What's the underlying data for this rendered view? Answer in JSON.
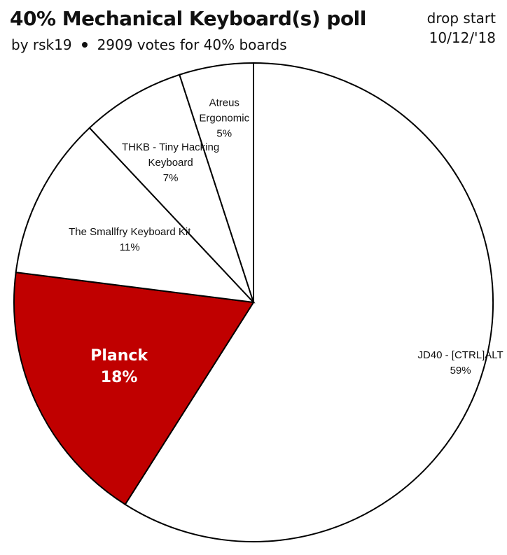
{
  "header": {
    "title": "40% Mechanical Keyboard(s) poll",
    "author": "by rsk19",
    "votes": "2909 votes for 40% boards",
    "corner_line1": "drop start",
    "corner_line2": "10/12/'18"
  },
  "chart_data": {
    "type": "pie",
    "start_angle_deg": 0,
    "direction": "clockwise",
    "slices": [
      {
        "name": "JD40 - [CTRL]ALT",
        "percent": 59,
        "label_lines": [
          "JD40 - [CTRL]ALT",
          "59%"
        ],
        "color": "#ffffff",
        "highlight": false
      },
      {
        "name": "Planck",
        "percent": 18,
        "label_lines": [
          "Planck",
          "18%"
        ],
        "color": "#c00000",
        "highlight": true
      },
      {
        "name": "The Smallfry Keyboard Kit",
        "percent": 11,
        "label_lines": [
          "The Smallfry Keyboard Kit",
          "11%"
        ],
        "color": "#ffffff",
        "highlight": false
      },
      {
        "name": "THKB - Tiny Hacking Keyboard",
        "percent": 7,
        "label_lines": [
          "THKB - Tiny Hacking",
          "Keyboard",
          "7%"
        ],
        "color": "#ffffff",
        "highlight": false
      },
      {
        "name": "Atreus Ergonomic",
        "percent": 5,
        "label_lines": [
          "Atreus",
          "Ergonomic",
          "5%"
        ],
        "color": "#ffffff",
        "highlight": false
      }
    ]
  }
}
